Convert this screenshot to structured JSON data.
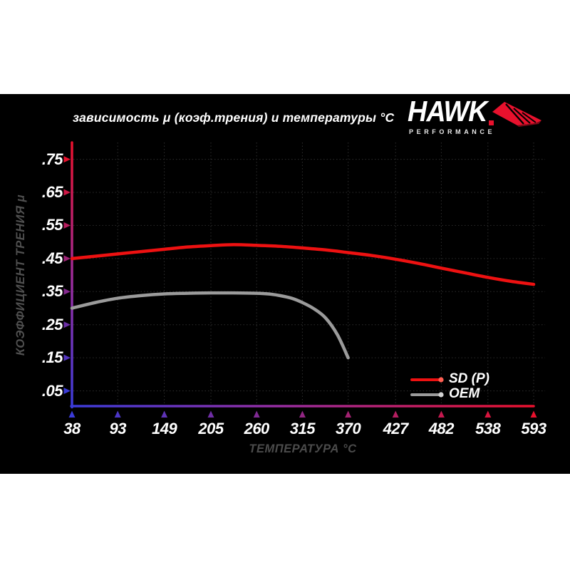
{
  "header": {
    "title": "зависимость μ (коэф.трения) и температуры °C",
    "logo": {
      "brand": "HAWK",
      "sub": "PERFORMANCE",
      "red": "#e8112d"
    }
  },
  "colors": {
    "page_bg": "#ffffff",
    "panel_bg": "#000000",
    "grid": "#2e2e2e",
    "tick_text": "#ffffff",
    "axis_title_text": "#4b4b4b",
    "axis_gradient_red": "#e8112d",
    "axis_gradient_blue": "#3b3bd8",
    "axis_gradient_mid": "#962da0"
  },
  "chart_data": {
    "type": "line",
    "title": "зависимость μ (коэф.трения) и температуры °C",
    "xlabel": "ТЕМПЕРАТУРА °C",
    "ylabel": "КОЭФФИЦИЕНТ ТРЕНИЯ μ",
    "x_ticks": [
      "38",
      "93",
      "149",
      "205",
      "260",
      "315",
      "370",
      "427",
      "482",
      "538",
      "593"
    ],
    "x_tick_values": [
      38,
      93,
      149,
      205,
      260,
      315,
      370,
      427,
      482,
      538,
      593
    ],
    "y_ticks": [
      ".75",
      ".65",
      ".55",
      ".45",
      ".35",
      ".25",
      ".15",
      ".05"
    ],
    "y_tick_values": [
      0.75,
      0.65,
      0.55,
      0.45,
      0.35,
      0.25,
      0.15,
      0.05
    ],
    "xlim": [
      38,
      593
    ],
    "ylim": [
      0,
      0.8
    ],
    "grid": "dotted",
    "legend_position": "lower right",
    "series": [
      {
        "name": "SD (P)",
        "color": "#ee1111",
        "dot_color": "#ff5f52",
        "points": [
          [
            38,
            0.45
          ],
          [
            66,
            0.457
          ],
          [
            93,
            0.464
          ],
          [
            121,
            0.471
          ],
          [
            149,
            0.478
          ],
          [
            177,
            0.485
          ],
          [
            205,
            0.489
          ],
          [
            232,
            0.492
          ],
          [
            260,
            0.49
          ],
          [
            288,
            0.487
          ],
          [
            315,
            0.482
          ],
          [
            343,
            0.476
          ],
          [
            370,
            0.468
          ],
          [
            399,
            0.459
          ],
          [
            427,
            0.448
          ],
          [
            455,
            0.435
          ],
          [
            482,
            0.421
          ],
          [
            510,
            0.407
          ],
          [
            538,
            0.393
          ],
          [
            566,
            0.381
          ],
          [
            593,
            0.372
          ]
        ]
      },
      {
        "name": "OEM",
        "color": "#9b9b9b",
        "dot_color": "#d2d2d2",
        "points": [
          [
            38,
            0.3
          ],
          [
            66,
            0.317
          ],
          [
            93,
            0.33
          ],
          [
            121,
            0.338
          ],
          [
            149,
            0.343
          ],
          [
            177,
            0.345
          ],
          [
            205,
            0.346
          ],
          [
            232,
            0.346
          ],
          [
            260,
            0.345
          ],
          [
            274,
            0.343
          ],
          [
            288,
            0.338
          ],
          [
            302,
            0.33
          ],
          [
            315,
            0.317
          ],
          [
            329,
            0.298
          ],
          [
            343,
            0.27
          ],
          [
            357,
            0.22
          ],
          [
            370,
            0.15
          ]
        ]
      }
    ]
  }
}
